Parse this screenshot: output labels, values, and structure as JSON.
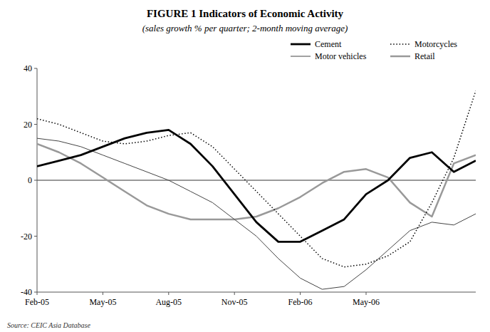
{
  "chart_data": {
    "type": "line",
    "title": "FIGURE 1 Indicators of Economic Activity",
    "subtitle": "(sales growth % per quarter; 2-month moving average)",
    "annotations": [
      "Source: CEIC Asia Database"
    ],
    "categories": [
      "Feb-05",
      null,
      null,
      "May-05",
      null,
      null,
      "Aug-05",
      null,
      null,
      "Nov-05",
      null,
      null,
      "Feb-06",
      null,
      null,
      "May-06",
      null,
      null,
      null,
      null,
      null
    ],
    "series": [
      {
        "name": "Cement",
        "color": "#000000",
        "line_style": "solid",
        "values": [
          5,
          7,
          9,
          12,
          15,
          17,
          18,
          13,
          5,
          -5,
          -15,
          -22,
          -22,
          -18,
          -14,
          -5,
          0,
          8,
          10,
          3,
          7
        ]
      },
      {
        "name": "Motorcycles",
        "color": "#000000",
        "line_style": "dotted",
        "values": [
          22,
          20,
          17,
          14,
          13,
          14,
          16,
          17,
          12,
          4,
          -4,
          -12,
          -20,
          -28,
          -31,
          -30,
          -27,
          -22,
          -8,
          8,
          32
        ]
      },
      {
        "name": "Motor vehicles",
        "color": "#444444",
        "line_style": "solid",
        "values": [
          15,
          14,
          12,
          9,
          6,
          3,
          0,
          -4,
          -8,
          -14,
          -20,
          -28,
          -35,
          -39,
          -38,
          -32,
          -25,
          -18,
          -15,
          -16,
          -12
        ]
      },
      {
        "name": "Retail",
        "color": "#999999",
        "line_style": "solid",
        "values": [
          13,
          10,
          6,
          1,
          -4,
          -9,
          -12,
          -14,
          -14,
          -14,
          -13,
          -10,
          -6,
          -1,
          3,
          4,
          1,
          -8,
          -13,
          6,
          9
        ]
      }
    ],
    "ylim": [
      -40,
      40
    ],
    "yticks": [
      -40,
      -20,
      0,
      20,
      40
    ],
    "grid": false,
    "legend": "upper right"
  }
}
